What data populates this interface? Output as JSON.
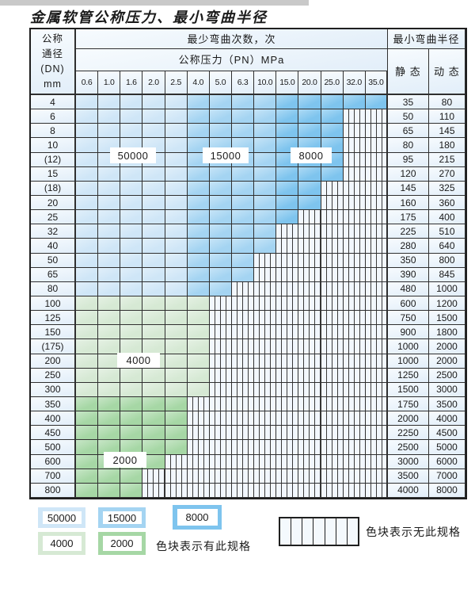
{
  "page": {
    "title": "金属软管公称压力、最小弯曲半径"
  },
  "table": {
    "dn_header_lines": [
      "公称",
      "通径",
      "(DN)",
      "mm"
    ],
    "bend_times_header": "最少弯曲次数，次",
    "pressure_header": "公称压力（PN）MPa",
    "radius_header": "最小弯曲半径",
    "static_header": "静 态",
    "dynamic_header": "动 态",
    "pressure_values": [
      "0.6",
      "1.0",
      "1.6",
      "2.0",
      "2.5",
      "4.0",
      "5.0",
      "6.3",
      "10.0",
      "15.0",
      "20.0",
      "25.0",
      "32.0",
      "35.0"
    ],
    "rows": [
      {
        "dn": "4",
        "static": "35",
        "dynamic": "80",
        "colored": 14,
        "band": "blue"
      },
      {
        "dn": "6",
        "static": "50",
        "dynamic": "110",
        "colored": 12,
        "band": "blue"
      },
      {
        "dn": "8",
        "static": "65",
        "dynamic": "145",
        "colored": 12,
        "band": "blue"
      },
      {
        "dn": "10",
        "static": "80",
        "dynamic": "180",
        "colored": 12,
        "band": "blue"
      },
      {
        "dn": "(12)",
        "static": "95",
        "dynamic": "215",
        "colored": 12,
        "band": "blue"
      },
      {
        "dn": "15",
        "static": "120",
        "dynamic": "270",
        "colored": 12,
        "band": "blue"
      },
      {
        "dn": "(18)",
        "static": "145",
        "dynamic": "325",
        "colored": 11,
        "band": "blue"
      },
      {
        "dn": "20",
        "static": "160",
        "dynamic": "360",
        "colored": 11,
        "band": "blue"
      },
      {
        "dn": "25",
        "static": "175",
        "dynamic": "400",
        "colored": 10,
        "band": "blue"
      },
      {
        "dn": "32",
        "static": "225",
        "dynamic": "510",
        "colored": 9,
        "band": "blue"
      },
      {
        "dn": "40",
        "static": "280",
        "dynamic": "640",
        "colored": 9,
        "band": "blue"
      },
      {
        "dn": "50",
        "static": "350",
        "dynamic": "800",
        "colored": 8,
        "band": "blue"
      },
      {
        "dn": "65",
        "static": "390",
        "dynamic": "845",
        "colored": 8,
        "band": "blue"
      },
      {
        "dn": "80",
        "static": "480",
        "dynamic": "1000",
        "colored": 7,
        "band": "blue"
      },
      {
        "dn": "100",
        "static": "600",
        "dynamic": "1200",
        "colored": 6,
        "band": "4000"
      },
      {
        "dn": "125",
        "static": "750",
        "dynamic": "1500",
        "colored": 6,
        "band": "4000"
      },
      {
        "dn": "150",
        "static": "900",
        "dynamic": "1800",
        "colored": 6,
        "band": "4000"
      },
      {
        "dn": "(175)",
        "static": "1000",
        "dynamic": "2000",
        "colored": 6,
        "band": "4000"
      },
      {
        "dn": "200",
        "static": "1000",
        "dynamic": "2000",
        "colored": 6,
        "band": "4000"
      },
      {
        "dn": "250",
        "static": "1250",
        "dynamic": "2500",
        "colored": 6,
        "band": "4000"
      },
      {
        "dn": "300",
        "static": "1500",
        "dynamic": "3000",
        "colored": 6,
        "band": "4000"
      },
      {
        "dn": "350",
        "static": "1750",
        "dynamic": "3500",
        "colored": 5,
        "band": "2000"
      },
      {
        "dn": "400",
        "static": "2000",
        "dynamic": "4000",
        "colored": 5,
        "band": "2000"
      },
      {
        "dn": "450",
        "static": "2250",
        "dynamic": "4500",
        "colored": 5,
        "band": "2000"
      },
      {
        "dn": "500",
        "static": "2500",
        "dynamic": "5000",
        "colored": 5,
        "band": "2000"
      },
      {
        "dn": "600",
        "static": "3000",
        "dynamic": "6000",
        "colored": 4,
        "band": "2000"
      },
      {
        "dn": "700",
        "static": "3500",
        "dynamic": "7000",
        "colored": 3,
        "band": "2000"
      },
      {
        "dn": "800",
        "static": "4000",
        "dynamic": "8000",
        "colored": 3,
        "band": "2000"
      }
    ],
    "blue_column_bands": {
      "50000": [
        0,
        4
      ],
      "15000": [
        5,
        8
      ],
      "8000": [
        9,
        13
      ]
    }
  },
  "colors": {
    "c50000": "#cfe6f7",
    "c15000": "#a4d4f2",
    "c8000": "#7ec4ee",
    "c4000": "#d6e9d4",
    "c2000": "#a6d7a5",
    "cell_base": "#e9f1fa",
    "hatch_bg": "#f2f7fd",
    "grid_line": "#2f2f2f"
  },
  "overlay_labels": [
    "50000",
    "15000",
    "8000",
    "4000",
    "2000"
  ],
  "legend": {
    "items": [
      {
        "label": "50000",
        "color": "c50000"
      },
      {
        "label": "15000",
        "color": "c15000"
      },
      {
        "label": "8000",
        "color": "c8000"
      },
      {
        "label": "4000",
        "color": "c4000"
      },
      {
        "label": "2000",
        "color": "c2000"
      }
    ],
    "has_spec_text": "色块表示有此规格",
    "no_spec_text": "色块表示无此规格"
  }
}
